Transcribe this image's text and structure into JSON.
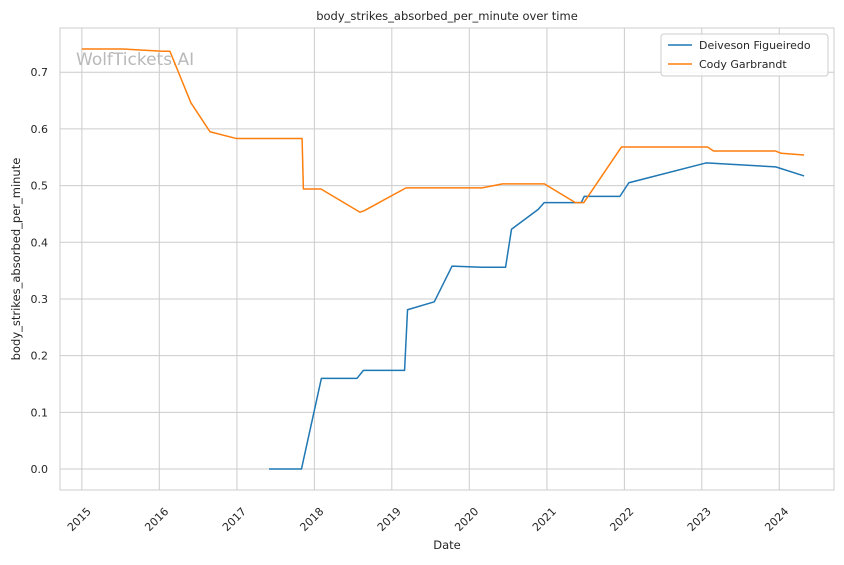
{
  "chart_data": {
    "type": "line",
    "title": "body_strikes_absorbed_per_minute over time",
    "xlabel": "Date",
    "ylabel": "body_strikes_absorbed_per_minute",
    "watermark": "WolfTickets.AI",
    "xlim": [
      "2014-09-20",
      "2024-09-15"
    ],
    "ylim": [
      -0.037,
      0.778
    ],
    "x_ticks": [
      "2015",
      "2016",
      "2017",
      "2018",
      "2019",
      "2020",
      "2021",
      "2022",
      "2023",
      "2024"
    ],
    "y_ticks": [
      "0.0",
      "0.1",
      "0.2",
      "0.3",
      "0.4",
      "0.5",
      "0.6",
      "0.7"
    ],
    "grid": true,
    "legend_position": "top-right",
    "series": [
      {
        "name": "Deiveson Figueiredo",
        "color": "#1f77b4",
        "points": [
          [
            "2017-06-01",
            0.0
          ],
          [
            "2017-11-01",
            0.0
          ],
          [
            "2018-02-03",
            0.16
          ],
          [
            "2018-07-21",
            0.16
          ],
          [
            "2018-08-20",
            0.174
          ],
          [
            "2019-03-02",
            0.174
          ],
          [
            "2019-03-16",
            0.281
          ],
          [
            "2019-07-20",
            0.295
          ],
          [
            "2019-10-12",
            0.358
          ],
          [
            "2020-02-29",
            0.356
          ],
          [
            "2020-06-20",
            0.356
          ],
          [
            "2020-07-18",
            0.423
          ],
          [
            "2020-11-21",
            0.458
          ],
          [
            "2020-12-19",
            0.47
          ],
          [
            "2021-06-12",
            0.47
          ],
          [
            "2021-06-26",
            0.481
          ],
          [
            "2021-12-11",
            0.481
          ],
          [
            "2022-01-22",
            0.505
          ],
          [
            "2023-01-21",
            0.54
          ],
          [
            "2023-12-15",
            0.533
          ],
          [
            "2024-04-27",
            0.517
          ]
        ]
      },
      {
        "name": "Cody Garbrandt",
        "color": "#ff7f0e",
        "points": [
          [
            "2015-01-01",
            0.741
          ],
          [
            "2015-07-12",
            0.741
          ],
          [
            "2016-01-17",
            0.737
          ],
          [
            "2016-02-20",
            0.737
          ],
          [
            "2016-05-29",
            0.646
          ],
          [
            "2016-08-27",
            0.595
          ],
          [
            "2016-12-30",
            0.583
          ],
          [
            "2017-11-04",
            0.583
          ],
          [
            "2017-11-10",
            0.494
          ],
          [
            "2018-02-01",
            0.494
          ],
          [
            "2018-08-04",
            0.453
          ],
          [
            "2018-08-25",
            0.456
          ],
          [
            "2019-03-09",
            0.496
          ],
          [
            "2020-03-01",
            0.496
          ],
          [
            "2020-06-06",
            0.503
          ],
          [
            "2020-12-20",
            0.503
          ],
          [
            "2021-05-15",
            0.47
          ],
          [
            "2021-06-24",
            0.47
          ],
          [
            "2021-12-18",
            0.568
          ],
          [
            "2023-01-28",
            0.568
          ],
          [
            "2023-02-25",
            0.561
          ],
          [
            "2023-12-15",
            0.561
          ],
          [
            "2024-01-10",
            0.557
          ],
          [
            "2024-04-27",
            0.554
          ]
        ]
      }
    ]
  }
}
